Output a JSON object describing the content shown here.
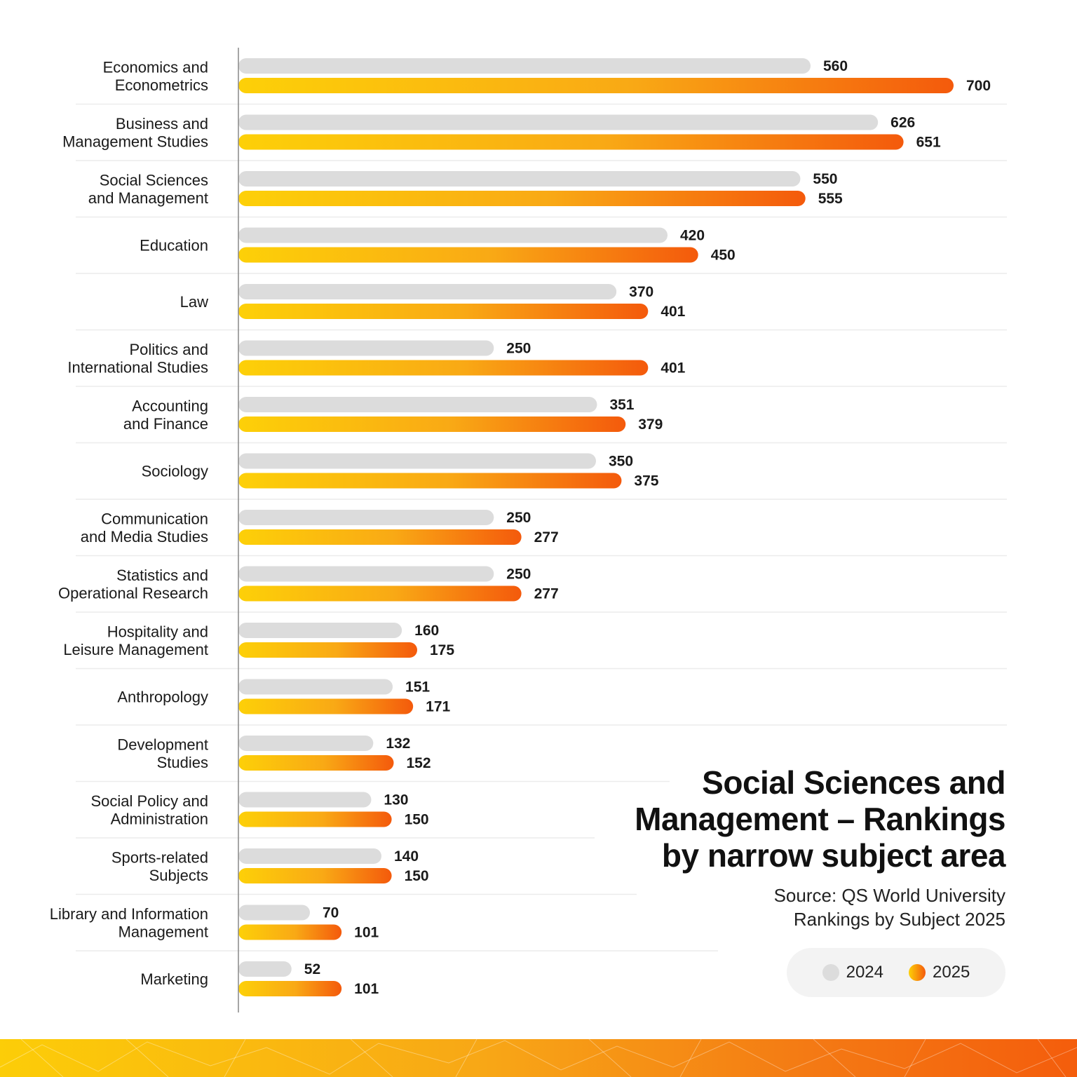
{
  "chart_data": {
    "type": "bar",
    "orientation": "horizontal",
    "title": "Social Sciences and Management – Rankings by narrow subject area",
    "title_lines": [
      "Social Sciences and",
      "Management – Rankings",
      "by narrow subject area"
    ],
    "source_lines": [
      "Source: QS World University",
      "Rankings by Subject 2025"
    ],
    "categories": [
      [
        "Economics and",
        "Econometrics"
      ],
      [
        "Business and",
        "Management Studies"
      ],
      [
        "Social Sciences",
        "and Management"
      ],
      [
        "Education"
      ],
      [
        "Law"
      ],
      [
        "Politics and",
        "International Studies"
      ],
      [
        "Accounting",
        "and Finance"
      ],
      [
        "Sociology"
      ],
      [
        "Communication",
        "and Media Studies"
      ],
      [
        "Statistics and",
        "Operational Research"
      ],
      [
        "Hospitality and",
        "Leisure Management"
      ],
      [
        "Anthropology"
      ],
      [
        "Development",
        "Studies"
      ],
      [
        "Social Policy and",
        "Administration"
      ],
      [
        "Sports-related",
        "Subjects"
      ],
      [
        "Library and Information",
        "Management"
      ],
      [
        "Marketing"
      ]
    ],
    "series": [
      {
        "name": "2024",
        "values": [
          560,
          626,
          550,
          420,
          370,
          250,
          351,
          350,
          250,
          250,
          160,
          151,
          132,
          130,
          140,
          70,
          52
        ]
      },
      {
        "name": "2025",
        "values": [
          700,
          651,
          555,
          450,
          401,
          401,
          379,
          375,
          277,
          277,
          175,
          171,
          152,
          150,
          150,
          101,
          101
        ]
      }
    ],
    "xlim": [
      0,
      700
    ],
    "legend": {
      "items": [
        "2024",
        "2025"
      ],
      "placement": "bottom-right"
    },
    "colors": {
      "bar_2024": "#dcdcdc",
      "bar_2025_start": "#fdd008",
      "bar_2025_end": "#f45a0c",
      "axis": "#888888",
      "separator": "#ececec"
    }
  }
}
